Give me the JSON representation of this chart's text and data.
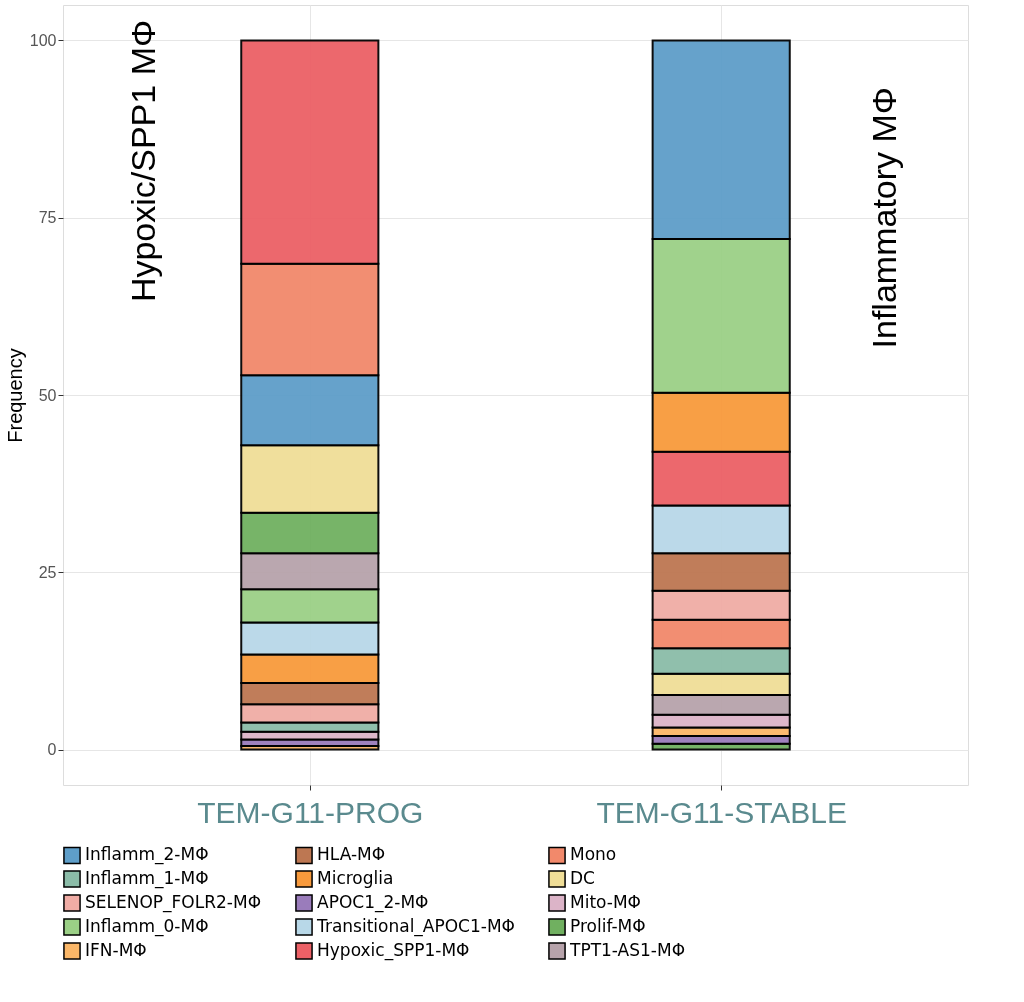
{
  "chart_data": {
    "type": "bar",
    "stacked": true,
    "categories": [
      "TEM-G11-PROG",
      "TEM-G11-STABLE"
    ],
    "ylabel": "Frequency",
    "ylim": [
      -5,
      105
    ],
    "yticks": [
      0,
      25,
      50,
      75,
      100
    ],
    "grid": true,
    "legend": "bottom",
    "annotations": [
      "Hypoxic/SPP1 MΦ",
      "Inflammatory MΦ"
    ],
    "series": [
      {
        "name": "Inflamm_2-MΦ",
        "color": "#5e9ec9",
        "values": [
          9.9,
          28.0
        ]
      },
      {
        "name": "Inflamm_1-MΦ",
        "color": "#8bbca8",
        "values": [
          1.3,
          3.6
        ]
      },
      {
        "name": "SELENOP_FOLR2-MΦ",
        "color": "#f0aca5",
        "values": [
          2.6,
          4.1
        ]
      },
      {
        "name": "Inflamm_0-MΦ",
        "color": "#9bd086",
        "values": [
          4.7,
          21.7
        ]
      },
      {
        "name": "IFN-MΦ",
        "color": "#fbb768",
        "values": [
          0.5,
          1.2
        ]
      },
      {
        "name": "HLA-MΦ",
        "color": "#bd7752",
        "values": [
          3.0,
          5.3
        ]
      },
      {
        "name": "Microglia",
        "color": "#f89a3c",
        "values": [
          4.0,
          8.3
        ]
      },
      {
        "name": "APOC1_2-MΦ",
        "color": "#9a7cbb",
        "values": [
          0.9,
          1.1
        ]
      },
      {
        "name": "Transitional_APOC1-MΦ",
        "color": "#b8d8e8",
        "values": [
          4.5,
          6.7
        ]
      },
      {
        "name": "Hypoxic_SPP1-MΦ",
        "color": "#ec6066",
        "values": [
          31.5,
          7.6
        ]
      },
      {
        "name": "Mono",
        "color": "#f2896b",
        "values": [
          15.7,
          4.0
        ]
      },
      {
        "name": "DC",
        "color": "#f0de97",
        "values": [
          9.5,
          3.0
        ]
      },
      {
        "name": "Mito-MΦ",
        "color": "#dcb4c8",
        "values": [
          1.1,
          1.8
        ]
      },
      {
        "name": "Prolif-MΦ",
        "color": "#70b060",
        "values": [
          5.7,
          0.8
        ]
      },
      {
        "name": "TPT1-AS1-MΦ",
        "color": "#b7a3ab",
        "values": [
          5.1,
          2.8
        ]
      }
    ]
  }
}
